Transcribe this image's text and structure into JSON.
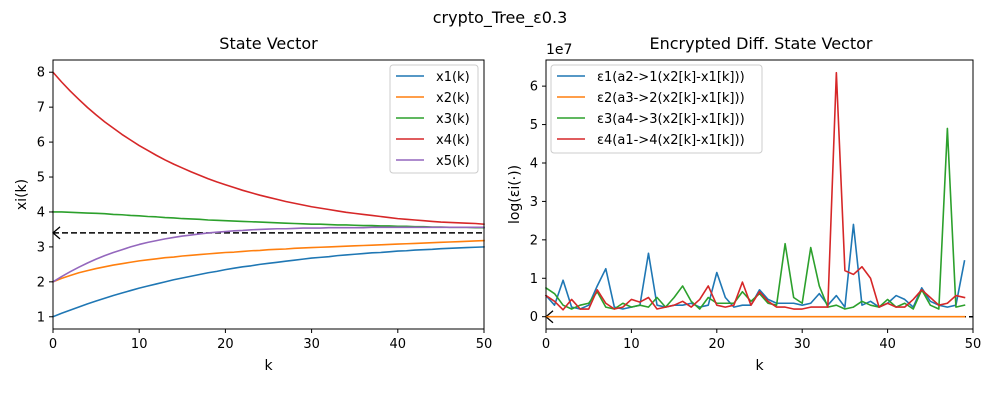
{
  "figure_title": "crypto_Tree_ε0.3",
  "chart_data": [
    {
      "type": "line",
      "title": "State Vector",
      "xlabel": "k",
      "ylabel": "xi(k)",
      "xlim": [
        0,
        50
      ],
      "ylim": [
        0.65,
        8.35
      ],
      "xticks": [
        0,
        10,
        20,
        30,
        40,
        50
      ],
      "yticks": [
        1,
        2,
        3,
        4,
        5,
        6,
        7,
        8
      ],
      "ytick_labels": [
        "1",
        "2",
        "3",
        "4",
        "5",
        "6",
        "7",
        "8"
      ],
      "x_range": [
        0,
        50
      ],
      "reference_line": {
        "y": 3.4,
        "style": "dashed",
        "color": "#000000"
      },
      "legend_position": "top-right",
      "series": [
        {
          "name": "x1(k)",
          "color": "#1f77b4",
          "values": [
            1.0,
            1.1,
            1.19,
            1.28,
            1.37,
            1.45,
            1.53,
            1.61,
            1.68,
            1.75,
            1.82,
            1.88,
            1.94,
            2.0,
            2.06,
            2.11,
            2.16,
            2.21,
            2.26,
            2.3,
            2.35,
            2.39,
            2.43,
            2.46,
            2.5,
            2.53,
            2.56,
            2.59,
            2.62,
            2.65,
            2.68,
            2.7,
            2.72,
            2.75,
            2.77,
            2.79,
            2.81,
            2.83,
            2.84,
            2.86,
            2.88,
            2.89,
            2.91,
            2.92,
            2.93,
            2.95,
            2.96,
            2.97,
            2.98,
            2.99,
            3.0
          ]
        },
        {
          "name": "x2(k)",
          "color": "#ff7f0e",
          "values": [
            2.0,
            2.1,
            2.18,
            2.26,
            2.32,
            2.38,
            2.43,
            2.48,
            2.52,
            2.56,
            2.6,
            2.63,
            2.66,
            2.69,
            2.71,
            2.74,
            2.76,
            2.78,
            2.8,
            2.82,
            2.84,
            2.85,
            2.87,
            2.89,
            2.9,
            2.92,
            2.93,
            2.94,
            2.96,
            2.97,
            2.98,
            2.99,
            3.0,
            3.01,
            3.02,
            3.03,
            3.04,
            3.05,
            3.06,
            3.07,
            3.08,
            3.09,
            3.1,
            3.11,
            3.12,
            3.13,
            3.14,
            3.15,
            3.16,
            3.17,
            3.18
          ]
        },
        {
          "name": "x3(k)",
          "color": "#2ca02c",
          "values": [
            4.0,
            4.0,
            3.99,
            3.98,
            3.97,
            3.96,
            3.95,
            3.93,
            3.92,
            3.9,
            3.89,
            3.87,
            3.86,
            3.84,
            3.83,
            3.81,
            3.8,
            3.79,
            3.77,
            3.76,
            3.75,
            3.74,
            3.73,
            3.72,
            3.71,
            3.7,
            3.69,
            3.68,
            3.67,
            3.66,
            3.65,
            3.65,
            3.64,
            3.63,
            3.63,
            3.62,
            3.61,
            3.61,
            3.6,
            3.6,
            3.59,
            3.59,
            3.58,
            3.58,
            3.57,
            3.57,
            3.56,
            3.56,
            3.56,
            3.55,
            3.55
          ]
        },
        {
          "name": "x4(k)",
          "color": "#d62728",
          "values": [
            8.0,
            7.72,
            7.46,
            7.22,
            6.99,
            6.78,
            6.58,
            6.4,
            6.22,
            6.06,
            5.9,
            5.76,
            5.62,
            5.49,
            5.37,
            5.26,
            5.15,
            5.05,
            4.95,
            4.86,
            4.78,
            4.7,
            4.62,
            4.55,
            4.48,
            4.42,
            4.36,
            4.3,
            4.25,
            4.2,
            4.15,
            4.11,
            4.07,
            4.03,
            3.99,
            3.96,
            3.93,
            3.9,
            3.87,
            3.84,
            3.81,
            3.79,
            3.77,
            3.75,
            3.73,
            3.71,
            3.7,
            3.69,
            3.68,
            3.67,
            3.65
          ]
        },
        {
          "name": "x5(k)",
          "color": "#9467bd",
          "values": [
            2.0,
            2.15,
            2.29,
            2.42,
            2.54,
            2.65,
            2.75,
            2.84,
            2.92,
            3.0,
            3.07,
            3.13,
            3.18,
            3.23,
            3.27,
            3.31,
            3.34,
            3.37,
            3.4,
            3.42,
            3.44,
            3.46,
            3.47,
            3.49,
            3.5,
            3.51,
            3.52,
            3.52,
            3.53,
            3.54,
            3.54,
            3.54,
            3.55,
            3.55,
            3.55,
            3.55,
            3.55,
            3.56,
            3.56,
            3.56,
            3.56,
            3.56,
            3.56,
            3.56,
            3.56,
            3.56,
            3.56,
            3.56,
            3.56,
            3.56,
            3.56
          ]
        }
      ]
    },
    {
      "type": "line",
      "title": "Encrypted Diff. State Vector",
      "xlabel": "k",
      "ylabel": "log(εi(·))",
      "axis_offset_text": "1e7",
      "xlim": [
        0,
        50
      ],
      "ylim": [
        -3.2,
        66.8
      ],
      "xticks": [
        0,
        10,
        20,
        30,
        40,
        50
      ],
      "yticks": [
        0,
        10,
        20,
        30,
        40,
        50,
        60
      ],
      "ytick_labels": [
        "0",
        "1",
        "2",
        "3",
        "4",
        "5",
        "6"
      ],
      "x_range": [
        0,
        49
      ],
      "reference_line": {
        "y": 0,
        "style": "dashed",
        "color": "#000000"
      },
      "legend_position": "top-left",
      "series": [
        {
          "name": "ε1(a2->1(x2[k]-x1[k]))",
          "color": "#1f77b4",
          "values": [
            5.5,
            3,
            9.5,
            2.5,
            2,
            3,
            8,
            12.5,
            2.5,
            2,
            2.5,
            3,
            16.5,
            3,
            2.5,
            3,
            3,
            3.5,
            2.5,
            3,
            11.5,
            5,
            2.5,
            3,
            3,
            7,
            4.5,
            3.5,
            3.5,
            3.5,
            3,
            3.5,
            6,
            3,
            5.5,
            2.5,
            24,
            3,
            4,
            2.5,
            3.5,
            5.5,
            4.5,
            2.5,
            7.5,
            4,
            3,
            2.5,
            3,
            14.5
          ]
        },
        {
          "name": "ε2(a3->2(x2[k]-x1[k]))",
          "color": "#ff7f0e",
          "values": [
            0,
            0,
            0,
            0,
            0,
            0,
            0,
            0,
            0,
            0,
            0,
            0,
            0,
            0,
            0,
            0,
            0,
            0,
            0,
            0,
            0,
            0,
            0,
            0,
            0,
            0,
            0,
            0,
            0,
            0,
            0,
            0,
            0,
            0,
            0,
            0,
            0,
            0,
            0,
            0,
            0,
            0,
            0,
            0,
            0,
            0,
            0,
            0,
            0,
            0
          ]
        },
        {
          "name": "ε3(a4->3(x2[k]-x1[k]))",
          "color": "#2ca02c",
          "values": [
            7.5,
            6,
            3,
            2,
            3,
            3.5,
            6.5,
            2.5,
            2,
            3.5,
            2.5,
            3,
            2.5,
            5,
            2.5,
            5,
            8,
            4,
            2,
            5,
            3.5,
            3.5,
            3.5,
            6.5,
            4,
            6,
            3.5,
            3,
            19,
            5,
            3.5,
            18,
            8,
            2.5,
            3,
            2,
            2.5,
            4,
            3,
            2.5,
            4.5,
            2.5,
            3.5,
            2,
            7,
            3,
            2,
            49,
            2.5,
            3
          ]
        },
        {
          "name": "ε4(a1->4(x2[k]-x1[k]))",
          "color": "#d62728",
          "values": [
            5.5,
            4,
            1.8,
            4.5,
            2,
            2,
            7,
            3.5,
            2,
            2.5,
            4.5,
            3.8,
            5,
            2,
            2.5,
            3,
            4,
            2.5,
            4.5,
            8,
            3,
            2.5,
            3,
            9,
            3,
            6.5,
            4,
            2.5,
            2.5,
            2,
            2,
            2.5,
            2.5,
            2.5,
            63.5,
            12,
            11,
            13,
            10,
            2.5,
            3.5,
            2.5,
            2.5,
            4.5,
            7,
            5,
            3,
            3.5,
            5.5,
            5
          ]
        }
      ]
    }
  ]
}
